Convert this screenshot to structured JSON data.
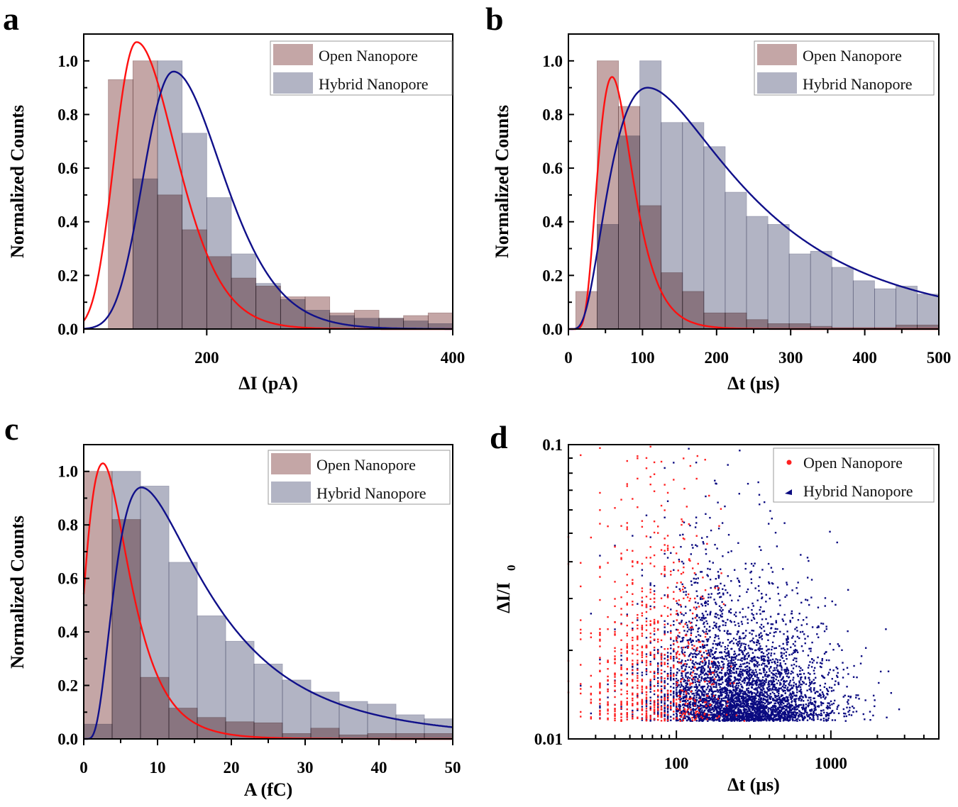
{
  "colors": {
    "open_bar": "#c4a6a6",
    "hybrid_bar": "#b2b4c4",
    "open_fit": "#ff1010",
    "hybrid_fit": "#10108a",
    "open_point": "#ff2020",
    "hybrid_point": "#0a0a80"
  },
  "chart_data": [
    {
      "panel": "a",
      "type": "bar",
      "xlabel": "ΔI (pA)",
      "ylabel": "Normalized Counts",
      "xlim": [
        100,
        400
      ],
      "ylim": [
        0,
        1.1
      ],
      "xticks": [
        100,
        200,
        300,
        400
      ],
      "xtick_labels": [
        "200",
        "400"
      ],
      "xtick_label_values": [
        200,
        400
      ],
      "yticks": [
        0,
        0.2,
        0.4,
        0.6,
        0.8,
        1.0
      ],
      "ytick_labels": [
        "0.0",
        "0.2",
        "0.4",
        "0.6",
        "0.8",
        "1.0"
      ],
      "legend": [
        "Open Nanopore",
        "Hybrid Nanopore"
      ],
      "legend_position": "top-right",
      "bin_start": 120,
      "bin_width": 20,
      "series": [
        {
          "name": "Open Nanopore",
          "values": [
            0.93,
            1.0,
            0.5,
            0.37,
            0.27,
            0.19,
            0.16,
            0.12,
            0.12,
            0.06,
            0.07,
            0.04,
            0.05,
            0.06
          ],
          "fit": {
            "mode": 143,
            "peak": 1.07,
            "x0": 0,
            "sigma_left": 0.134,
            "sigma_right": 0.205
          }
        },
        {
          "name": "Hybrid Nanopore",
          "values": [
            0,
            0.56,
            1.0,
            0.73,
            0.49,
            0.28,
            0.17,
            0.11,
            0.07,
            0.05,
            0.04,
            0.04,
            0.03,
            0.02
          ],
          "fit": {
            "mode": 173,
            "peak": 0.96,
            "x0": 0,
            "sigma_left": 0.15,
            "sigma_right": 0.208
          }
        }
      ]
    },
    {
      "panel": "b",
      "type": "bar",
      "xlabel": "Δt (μs)",
      "ylabel": "Normalized Counts",
      "xlim": [
        0,
        500
      ],
      "ylim": [
        0,
        1.1
      ],
      "xticks": [
        0,
        50,
        100,
        150,
        200,
        250,
        300,
        350,
        400,
        450,
        500
      ],
      "xtick_labels": [
        "0",
        "100",
        "200",
        "300",
        "400",
        "500"
      ],
      "xtick_label_values": [
        0,
        100,
        200,
        300,
        400,
        500
      ],
      "yticks": [
        0,
        0.2,
        0.4,
        0.6,
        0.8,
        1.0
      ],
      "ytick_labels": [
        "0.0",
        "0.2",
        "0.4",
        "0.6",
        "0.8",
        "1.0"
      ],
      "legend": [
        "Open Nanopore",
        "Hybrid Nanopore"
      ],
      "legend_position": "top-right",
      "bin_start": 10,
      "bin_width": 28.8,
      "series": [
        {
          "name": "Open Nanopore",
          "values": [
            0.14,
            1.0,
            0.83,
            0.46,
            0.21,
            0.14,
            0.06,
            0.06,
            0.035,
            0.02,
            0.02,
            0.01,
            0.005,
            0.005,
            0.005,
            0.015,
            0.015
          ],
          "fit": {
            "mode": 59,
            "peak": 0.94,
            "x0": 0,
            "sigma_left": 0.416,
            "sigma_right": 0.386
          }
        },
        {
          "name": "Hybrid Nanopore",
          "values": [
            0,
            0.39,
            0.72,
            1.0,
            0.77,
            0.77,
            0.68,
            0.51,
            0.42,
            0.39,
            0.28,
            0.29,
            0.23,
            0.18,
            0.15,
            0.16,
            0.13
          ],
          "fit": {
            "mode": 107,
            "peak": 0.9,
            "x0": 0,
            "sigma_left": 0.67,
            "sigma_right": 0.77
          }
        }
      ]
    },
    {
      "panel": "c",
      "type": "bar",
      "xlabel": "A (fC)",
      "ylabel": "Normalized Counts",
      "xlim": [
        0,
        50
      ],
      "ylim": [
        0,
        1.1
      ],
      "xticks": [
        0,
        5,
        10,
        15,
        20,
        25,
        30,
        35,
        40,
        45,
        50
      ],
      "xtick_labels": [
        "0",
        "10",
        "20",
        "30",
        "40",
        "50"
      ],
      "xtick_label_values": [
        0,
        10,
        20,
        30,
        40,
        50
      ],
      "yticks": [
        0,
        0.2,
        0.4,
        0.6,
        0.8,
        1.0
      ],
      "ytick_labels": [
        "0.0",
        "0.2",
        "0.4",
        "0.6",
        "0.8",
        "1.0"
      ],
      "legend": [
        "Open Nanopore",
        "Hybrid Nanopore"
      ],
      "legend_position": "top-right",
      "bin_start": 0,
      "bin_width": 3.846,
      "series": [
        {
          "name": "Open Nanopore",
          "values": [
            1.0,
            0.82,
            0.23,
            0.115,
            0.08,
            0.064,
            0.06,
            0.02,
            0.04,
            0.015,
            0.02,
            0.02,
            0.02
          ],
          "fit": {
            "mode": 2.6,
            "peak": 1.03,
            "x0": -3,
            "sigma_left": 0.55,
            "sigma_right": 0.49
          }
        },
        {
          "name": "Hybrid Nanopore",
          "values": [
            0.055,
            1.0,
            0.945,
            0.66,
            0.46,
            0.365,
            0.28,
            0.22,
            0.175,
            0.14,
            0.13,
            0.09,
            0.075
          ],
          "fit": {
            "mode": 7.8,
            "peak": 0.94,
            "x0": 0,
            "sigma_left": 0.635,
            "sigma_right": 0.75
          }
        }
      ]
    },
    {
      "panel": "d",
      "type": "scatter",
      "xlabel": "Δt (μs)",
      "ylabel": "ΔI/I",
      "ylabel_sub": "0",
      "xscale": "log",
      "yscale": "log",
      "xlim": [
        20,
        5000
      ],
      "ylim": [
        0.01,
        0.1
      ],
      "xtick_labels": [
        "100",
        "1000"
      ],
      "xtick_label_values": [
        100,
        1000
      ],
      "ytick_labels": [
        "0.1",
        "0.01"
      ],
      "ytick_label_values": [
        0.1,
        0.01
      ],
      "legend": [
        "Open Nanopore",
        "Hybrid Nanopore"
      ],
      "legend_position": "top-right",
      "series": [
        {
          "name": "Open Nanopore",
          "n_points": 800,
          "log10_dt_mean": 1.85,
          "log10_dt_sd": 0.22,
          "min_ratio": 0.0115,
          "log10_ratio_tail": 0.2
        },
        {
          "name": "Hybrid Nanopore",
          "n_points": 4200,
          "log10_dt_mean": 2.4,
          "log10_dt_sd": 0.3,
          "min_ratio": 0.0115,
          "log10_ratio_tail": 0.12
        }
      ]
    }
  ]
}
